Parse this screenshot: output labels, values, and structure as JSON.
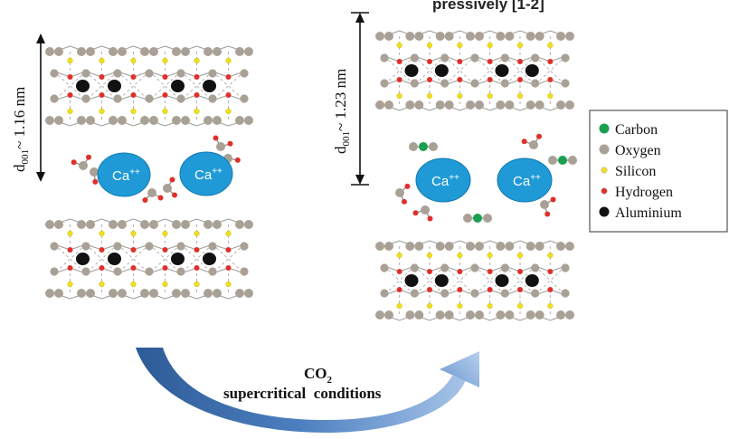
{
  "header_fragment": "pressively [1-2]",
  "left_panel": {
    "spacing_label": "d",
    "spacing_sub": "001",
    "spacing_value": "~ 1.16 nm",
    "cations": [
      "Ca",
      "Ca"
    ],
    "cation_charge": "++"
  },
  "right_panel": {
    "spacing_label": "d",
    "spacing_sub": "001",
    "spacing_value": "~ 1.23 nm",
    "cations": [
      "Ca",
      "Ca"
    ],
    "cation_charge": "++"
  },
  "process": {
    "line1_main": "CO",
    "line1_sub": "2",
    "line2": "supercritical  conditions"
  },
  "legend": [
    {
      "label": "Carbon",
      "color": "#1a9e4f",
      "marker": "circle"
    },
    {
      "label": "Oxygen",
      "color": "#aaa196",
      "marker": "circle"
    },
    {
      "label": "Silicon",
      "color": "#f0e020",
      "marker": "small-circle"
    },
    {
      "label": "Hydrogen",
      "color": "#e0302a",
      "marker": "small-circle"
    },
    {
      "label": "Aluminium",
      "color": "#111111",
      "marker": "circle"
    }
  ],
  "colors": {
    "cation": "#1f9ad6",
    "arrow_dark": "#2f5f9c",
    "arrow_light": "#a9c6e8",
    "bond": "#9a9a9a"
  }
}
